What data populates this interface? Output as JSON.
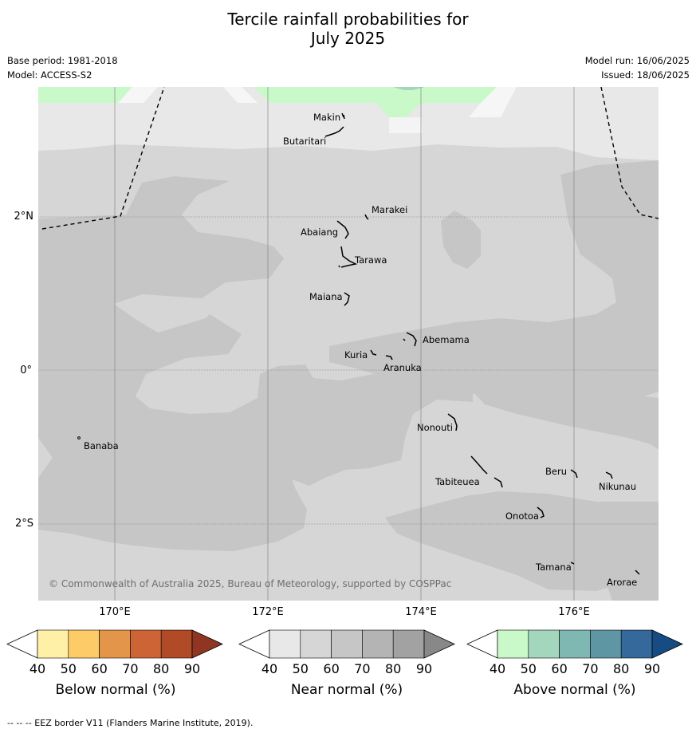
{
  "title_line1": "Tercile rainfall probabilities for",
  "title_line2": "July 2025",
  "meta": {
    "base_period": "Base period: 1981-2018",
    "model": "Model: ACCESS-S2",
    "model_run": "Model run: 16/06/2025",
    "issued": "Issued: 18/06/2025"
  },
  "map": {
    "lat_labels": [
      "2°N",
      "0°",
      "2°S"
    ],
    "lon_labels": [
      "170°E",
      "172°E",
      "174°E",
      "176°E"
    ],
    "islands": {
      "makin": "Makin",
      "butaritari": "Butaritari",
      "marakei": "Marakei",
      "abaiang": "Abaiang",
      "tarawa": "Tarawa",
      "maiana": "Maiana",
      "abemama": "Abemama",
      "kuria": "Kuria",
      "aranuka": "Aranuka",
      "nonouti": "Nonouti",
      "banaba": "Banaba",
      "beru": "Beru",
      "tabiteuea": "Tabiteuea",
      "nikunau": "Nikunau",
      "onotoa": "Onotoa",
      "tamana": "Tamana",
      "arorae": "Arorae"
    },
    "copyright": "© Commonwealth of Australia 2025, Bureau of Meteorology, supported by COSPPac"
  },
  "colorbars": {
    "ticks": [
      "40",
      "50",
      "60",
      "70",
      "80",
      "90"
    ],
    "below": {
      "label": "Below normal (%)",
      "colors": [
        "#fef0a6",
        "#fdcb67",
        "#e3964a",
        "#cd6435",
        "#b04a27",
        "#8f3522"
      ]
    },
    "near": {
      "label": "Near normal (%)",
      "colors": [
        "#e8e8e8",
        "#d6d6d6",
        "#c6c6c6",
        "#b4b4b4",
        "#a2a2a2",
        "#888888"
      ]
    },
    "above": {
      "label": "Above normal (%)",
      "colors": [
        "#c9f8c9",
        "#a3d6bd",
        "#7fb7b2",
        "#5e96a4",
        "#35689b",
        "#164b83"
      ]
    }
  },
  "footer": "--  --  -- EEZ border V11 (Flanders Marine Institute, 2019)."
}
